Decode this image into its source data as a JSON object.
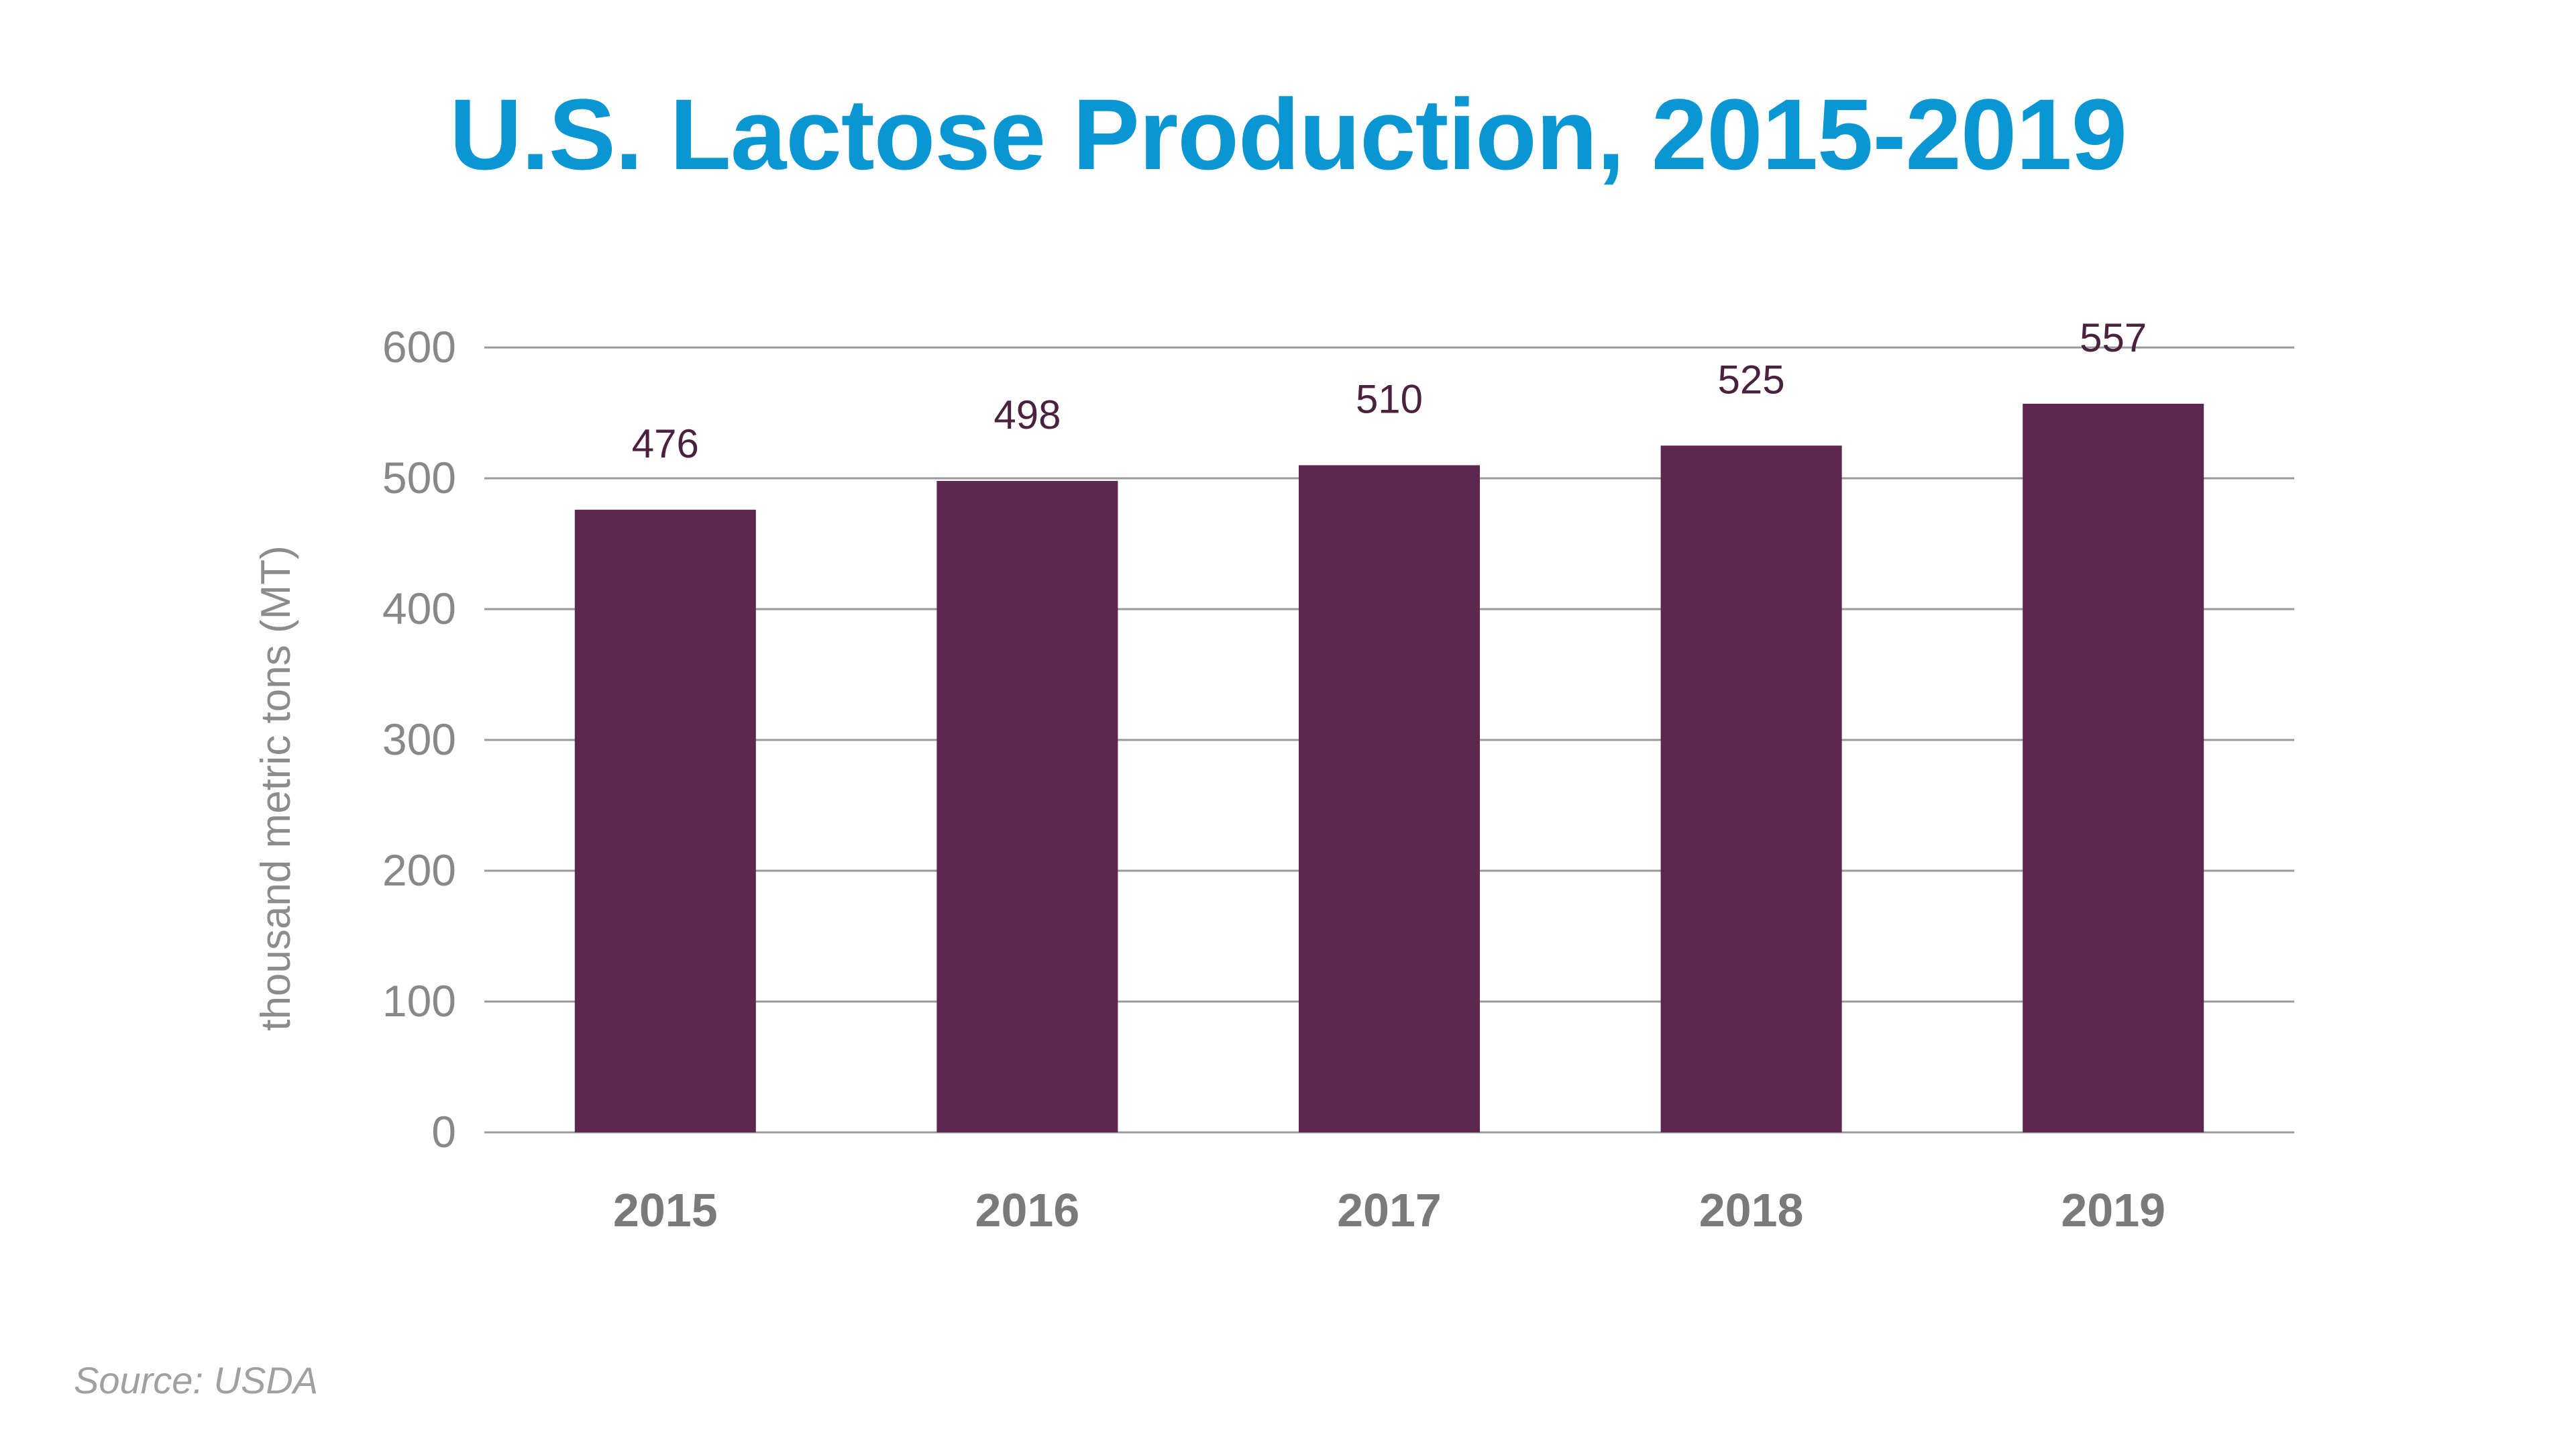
{
  "source": "Source: USDA",
  "colors": {
    "title": "#0a96d3",
    "bar": "#5e274f",
    "data_label": "#4a2240",
    "tick_label": "#888888",
    "category_label": "#7a7a7a",
    "grid": "#9a9a9a",
    "axis_title": "#8c8c8c",
    "source": "#a0a0a0"
  },
  "chart_data": {
    "type": "bar",
    "title": "U.S. Lactose Production, 2015-2019",
    "xlabel": "",
    "ylabel": "thousand metric tons (MT)",
    "categories": [
      "2015",
      "2016",
      "2017",
      "2018",
      "2019"
    ],
    "values": [
      476,
      498,
      510,
      525,
      557
    ],
    "data_labels": [
      "476",
      "498",
      "510",
      "525",
      "557"
    ],
    "ylim": [
      0,
      600
    ],
    "yticks": [
      0,
      100,
      200,
      300,
      400,
      500,
      600
    ],
    "grid": true,
    "legend": "none"
  }
}
